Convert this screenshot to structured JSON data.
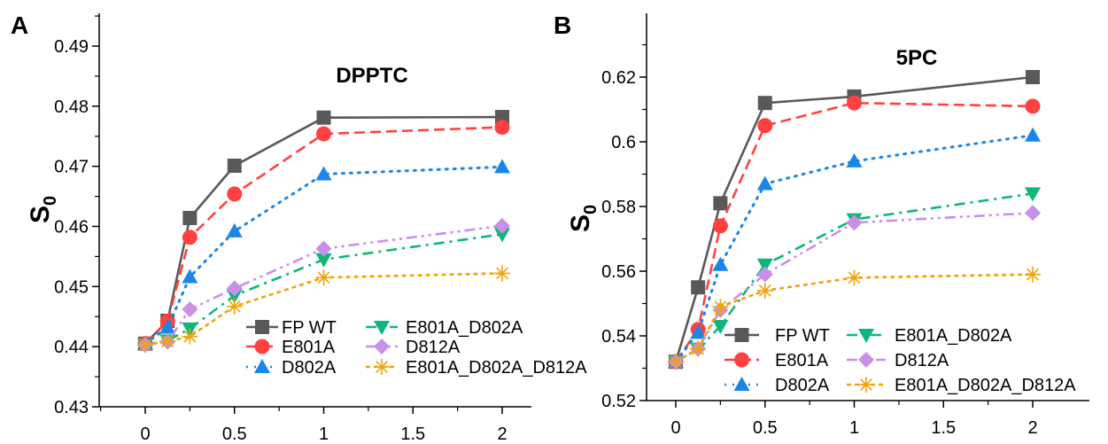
{
  "chart_data": [
    {
      "type": "line",
      "panel_label": "A",
      "title": "DPPTC",
      "ylabel": "S",
      "ylabel_sub": "0",
      "xlabel": "",
      "xlim": [
        -0.25,
        2.15
      ],
      "ylim": [
        0.43,
        0.49
      ],
      "x_ticks": [
        "0",
        "0.5",
        "1",
        "1.5",
        "2"
      ],
      "y_ticks": [
        "0.43",
        "0.44",
        "0.45",
        "0.46",
        "0.47",
        "0.48",
        "0.49"
      ],
      "grid": false,
      "legend_placement": "bottom-right",
      "x": [
        0,
        0.125,
        0.25,
        0.5,
        1,
        2
      ],
      "series": [
        {
          "name": "FP WT",
          "color": "#595959",
          "marker": "square",
          "dash": "solid",
          "values": [
            0.4405,
            0.4443,
            0.4614,
            0.4701,
            0.4781,
            0.4782
          ]
        },
        {
          "name": "E801A",
          "color": "#ff4141",
          "marker": "circle",
          "dash": "dash",
          "values": [
            0.4405,
            0.4442,
            0.4582,
            0.4654,
            0.4754,
            0.4765
          ]
        },
        {
          "name": "D802A",
          "color": "#1a86e8",
          "marker": "triangle-up",
          "dash": "dot",
          "values": [
            0.4405,
            0.4432,
            0.4516,
            0.4592,
            0.4687,
            0.4699
          ]
        },
        {
          "name": "E801A_D802A",
          "color": "#0db779",
          "marker": "triangle-down",
          "dash": "dash-dot",
          "values": [
            0.4403,
            0.441,
            0.443,
            0.4485,
            0.4545,
            0.4587
          ]
        },
        {
          "name": "D812A",
          "color": "#c890e6",
          "marker": "diamond",
          "dash": "dash-dot-dot",
          "values": [
            0.4403,
            0.4408,
            0.4462,
            0.4497,
            0.4563,
            0.4601
          ]
        },
        {
          "name": "E801A_D802A_D812A",
          "color": "#f0a30a",
          "marker": "asterisk",
          "dash": "short-dash",
          "values": [
            0.4403,
            0.4409,
            0.4417,
            0.4467,
            0.4515,
            0.4522
          ]
        }
      ]
    },
    {
      "type": "line",
      "panel_label": "B",
      "title": "5PC",
      "ylabel": "S",
      "ylabel_sub": "0",
      "xlabel": "",
      "xlim": [
        -0.25,
        2.15
      ],
      "ylim": [
        0.52,
        0.63
      ],
      "x_ticks": [
        "0",
        "0.5",
        "1",
        "1.5",
        "2"
      ],
      "y_ticks": [
        "0.52",
        "0.54",
        "0.56",
        "0.58",
        "0.6",
        "0.62"
      ],
      "grid": false,
      "legend_placement": "bottom-right",
      "x": [
        0,
        0.125,
        0.25,
        0.5,
        1,
        2
      ],
      "series": [
        {
          "name": "FP WT",
          "color": "#595959",
          "marker": "square",
          "dash": "solid",
          "values": [
            0.532,
            0.555,
            0.581,
            0.612,
            0.614,
            0.62
          ]
        },
        {
          "name": "E801A",
          "color": "#ff4141",
          "marker": "circle",
          "dash": "dash",
          "values": [
            0.532,
            0.542,
            0.574,
            0.605,
            0.612,
            0.611
          ]
        },
        {
          "name": "D802A",
          "color": "#1a86e8",
          "marker": "triangle-up",
          "dash": "dot",
          "values": [
            0.532,
            0.541,
            0.562,
            0.587,
            0.594,
            0.602
          ]
        },
        {
          "name": "E801A_D802A",
          "color": "#0db779",
          "marker": "triangle-down",
          "dash": "dash-dot",
          "values": [
            0.532,
            0.536,
            0.543,
            0.562,
            0.576,
            0.584
          ]
        },
        {
          "name": "D812A",
          "color": "#c890e6",
          "marker": "diamond",
          "dash": "dash-dot-dot",
          "values": [
            0.532,
            0.536,
            0.548,
            0.559,
            0.575,
            0.578
          ]
        },
        {
          "name": "E801A_D802A_D812A",
          "color": "#f0a30a",
          "marker": "asterisk",
          "dash": "short-dash",
          "values": [
            0.532,
            0.536,
            0.549,
            0.554,
            0.558,
            0.559
          ]
        }
      ]
    }
  ]
}
